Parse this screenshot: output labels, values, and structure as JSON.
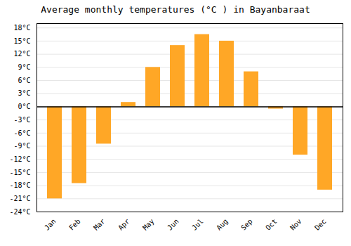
{
  "chart_data": {
    "type": "bar",
    "title": "Average monthly temperatures (°C ) in Bayanbaraat",
    "categories": [
      "Jan",
      "Feb",
      "Mar",
      "Apr",
      "May",
      "Jun",
      "Jul",
      "Aug",
      "Sep",
      "Oct",
      "Nov",
      "Dec"
    ],
    "values": [
      -21,
      -17.5,
      -8.5,
      1,
      9,
      14,
      16.5,
      15,
      8,
      -0.5,
      -11,
      -19
    ],
    "color": "#FFA726",
    "ylim": [
      -24,
      19
    ],
    "yticks": [
      {
        "value": -24,
        "label": "-24°C"
      },
      {
        "value": -21,
        "label": "-21°C"
      },
      {
        "value": -18,
        "label": "-18°C"
      },
      {
        "value": -15,
        "label": "-15°C"
      },
      {
        "value": -12,
        "label": "-12°C"
      },
      {
        "value": -9,
        "label": "-9°C"
      },
      {
        "value": -6,
        "label": "-6°C"
      },
      {
        "value": -3,
        "label": "-3°C"
      },
      {
        "value": 0,
        "label": "0°C"
      },
      {
        "value": 3,
        "label": "3°C"
      },
      {
        "value": 6,
        "label": "6°C"
      },
      {
        "value": 9,
        "label": "9°C"
      },
      {
        "value": 12,
        "label": "12°C"
      },
      {
        "value": 15,
        "label": "15°C"
      },
      {
        "value": 18,
        "label": "18°C"
      }
    ],
    "grid": true
  }
}
